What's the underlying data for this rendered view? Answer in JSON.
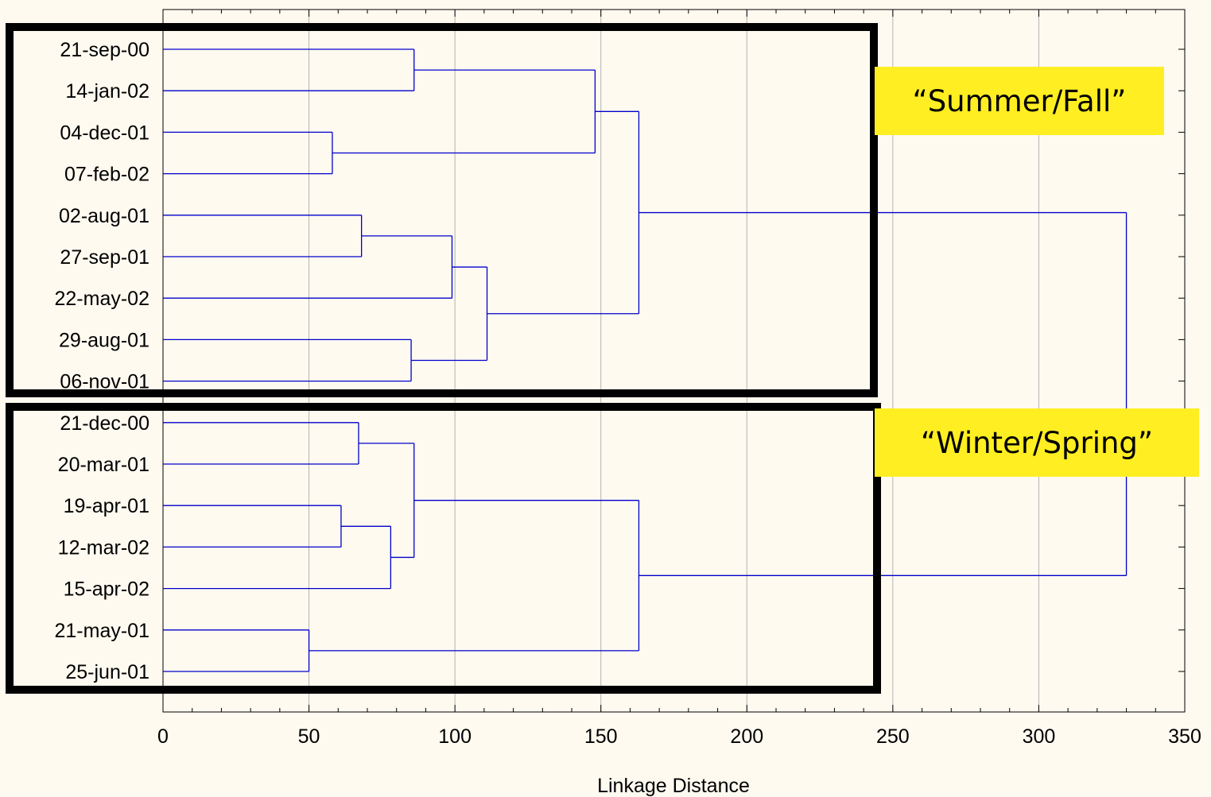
{
  "chart_data": {
    "type": "dendrogram",
    "orientation": "horizontal",
    "xlabel": "Linkage Distance",
    "xlim": [
      0,
      350
    ],
    "xticks": [
      0,
      50,
      100,
      150,
      200,
      250,
      300,
      350
    ],
    "grid": "vertical",
    "leaves": [
      "21-sep-00",
      "14-jan-02",
      "04-dec-01",
      "07-feb-02",
      "02-aug-01",
      "27-sep-01",
      "22-may-02",
      "29-aug-01",
      "06-nov-01",
      "21-dec-00",
      "20-mar-01",
      "19-apr-01",
      "12-mar-02",
      "15-apr-02",
      "21-may-01",
      "25-jun-01"
    ],
    "merges": [
      {
        "left": "21-sep-00",
        "right": "14-jan-02",
        "distance": 86
      },
      {
        "left": "04-dec-01",
        "right": "07-feb-02",
        "distance": 58
      },
      {
        "left": "02-aug-01",
        "right": "27-sep-01",
        "distance": 68
      },
      {
        "left": "29-aug-01",
        "right": "06-nov-01",
        "distance": 85
      },
      {
        "left": "21-dec-00",
        "right": "20-mar-01",
        "distance": 67
      },
      {
        "left": "19-apr-01",
        "right": "12-mar-02",
        "distance": 61
      },
      {
        "left": "21-may-01",
        "right": "25-jun-01",
        "distance": 50
      }
    ],
    "tree": {
      "h": 330,
      "c": [
        {
          "h": 163,
          "c": [
            {
              "h": 148,
              "c": [
                {
                  "h": 86,
                  "c": [
                    {
                      "l": 0
                    },
                    {
                      "l": 1
                    }
                  ]
                },
                {
                  "h": 58,
                  "c": [
                    {
                      "l": 2
                    },
                    {
                      "l": 3
                    }
                  ]
                }
              ]
            },
            {
              "h": 111,
              "c": [
                {
                  "h": 99,
                  "c": [
                    {
                      "h": 68,
                      "c": [
                        {
                          "l": 4
                        },
                        {
                          "l": 5
                        }
                      ]
                    },
                    {
                      "l": 6
                    }
                  ]
                },
                {
                  "h": 85,
                  "c": [
                    {
                      "l": 7
                    },
                    {
                      "l": 8
                    }
                  ]
                }
              ]
            }
          ]
        },
        {
          "h": 163,
          "c": [
            {
              "h": 86,
              "c": [
                {
                  "h": 67,
                  "c": [
                    {
                      "l": 9
                    },
                    {
                      "l": 10
                    }
                  ]
                },
                {
                  "h": 78,
                  "c": [
                    {
                      "h": 61,
                      "c": [
                        {
                          "l": 11
                        },
                        {
                          "l": 12
                        }
                      ]
                    },
                    {
                      "l": 13
                    }
                  ]
                }
              ]
            },
            {
              "h": 50,
              "c": [
                {
                  "l": 14
                },
                {
                  "l": 15
                }
              ]
            }
          ]
        }
      ]
    },
    "clusters": [
      {
        "label": "“Summer/Fall”",
        "leaves": [
          0,
          8
        ]
      },
      {
        "label": "“Winter/Spring”",
        "leaves": [
          9,
          15
        ]
      }
    ],
    "colors": {
      "background": "#fffaf0",
      "line": "#0000cc",
      "grid": "#b3b3b3",
      "highlight": "#ffee22",
      "box": "#000000"
    }
  }
}
